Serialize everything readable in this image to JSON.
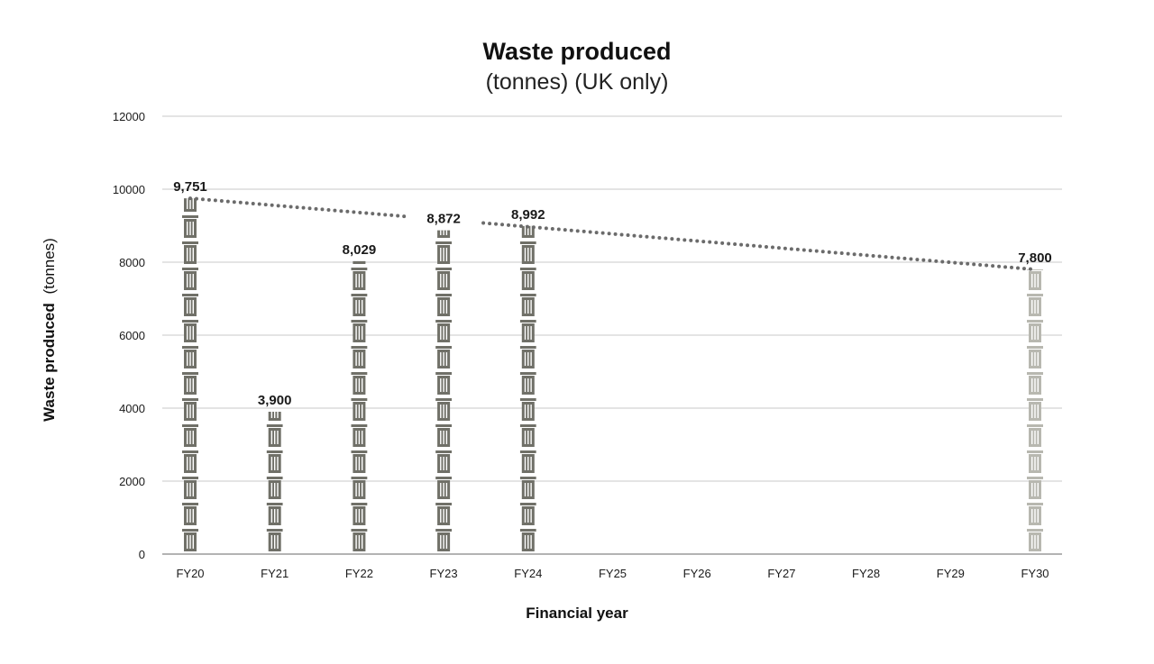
{
  "chart_data": {
    "type": "bar",
    "title": "Waste produced",
    "subtitle": "(tonnes) (UK only)",
    "xlabel": "Financial year",
    "ylabel_bold": "Waste produced",
    "ylabel_light": "(tonnes)",
    "ylim": [
      0,
      12000
    ],
    "yticks": [
      "0",
      "2000",
      "4000",
      "6000",
      "8000",
      "10000",
      "12000"
    ],
    "grid": true,
    "categories": [
      "FY20",
      "FY21",
      "FY22",
      "FY23",
      "FY24",
      "FY25",
      "FY26",
      "FY27",
      "FY28",
      "FY29",
      "FY30"
    ],
    "series": [
      {
        "values": [
          9751,
          3900,
          8029,
          8872,
          8992,
          null,
          null,
          null,
          null,
          null,
          null
        ],
        "labels": [
          "9,751",
          "3,900",
          "8,029",
          "8,872",
          "8,992",
          "",
          "",
          "",
          "",
          "",
          ""
        ],
        "color": "#707068"
      },
      {
        "values": [
          null,
          null,
          null,
          null,
          null,
          null,
          null,
          null,
          null,
          null,
          7800
        ],
        "labels": [
          "",
          "",
          "",
          "",
          "",
          "",
          "",
          "",
          "",
          "",
          "7,800"
        ],
        "color": "#b8b8b0"
      }
    ],
    "trendline": {
      "style": "dotted",
      "color": "#6b6b6b",
      "points": [
        [
          "FY20",
          9751
        ],
        [
          "FY30",
          7800
        ]
      ]
    },
    "colors": {
      "grid": "#c8c8c8",
      "axis": "#9a9a9a",
      "text": "#1a1a1a"
    }
  }
}
